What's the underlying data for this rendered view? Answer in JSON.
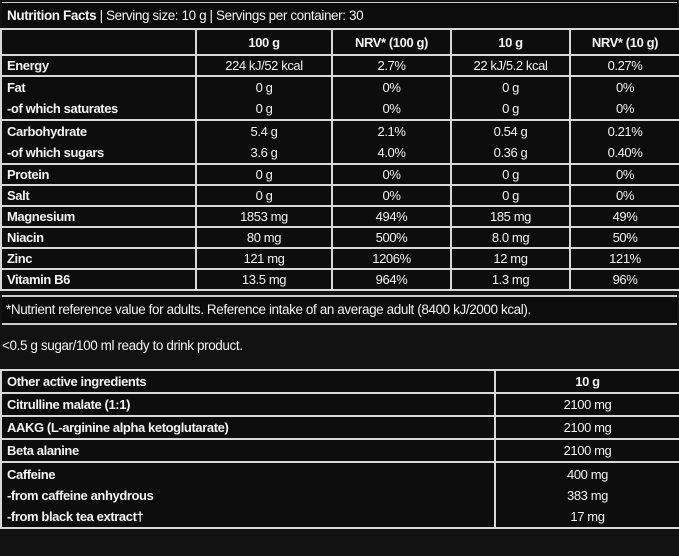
{
  "title": {
    "bold": "Nutrition Facts",
    "rest": " | Serving size: 10 g | Servings per container: 30"
  },
  "nutrition_table": {
    "headers": [
      "",
      "100 g",
      "NRV* (100 g)",
      "10 g",
      "NRV* (10 g)"
    ],
    "rows": [
      {
        "labels": [
          "Energy"
        ],
        "c100": [
          "224 kJ/52 kcal"
        ],
        "nrv100": [
          "2.7%"
        ],
        "c10": [
          "22 kJ/5.2 kcal"
        ],
        "nrv10": [
          "0.27%"
        ]
      },
      {
        "labels": [
          "Fat",
          "-of which saturates"
        ],
        "c100": [
          "0 g",
          "0 g"
        ],
        "nrv100": [
          "0%",
          "0%"
        ],
        "c10": [
          "0 g",
          "0 g"
        ],
        "nrv10": [
          "0%",
          "0%"
        ]
      },
      {
        "labels": [
          "Carbohydrate",
          "-of which sugars"
        ],
        "c100": [
          "5.4 g",
          "3.6 g"
        ],
        "nrv100": [
          "2.1%",
          "4.0%"
        ],
        "c10": [
          "0.54 g",
          "0.36 g"
        ],
        "nrv10": [
          "0.21%",
          "0.40%"
        ]
      },
      {
        "labels": [
          "Protein"
        ],
        "c100": [
          "0 g"
        ],
        "nrv100": [
          "0%"
        ],
        "c10": [
          "0 g"
        ],
        "nrv10": [
          "0%"
        ]
      },
      {
        "labels": [
          "Salt"
        ],
        "c100": [
          "0 g"
        ],
        "nrv100": [
          "0%"
        ],
        "c10": [
          "0 g"
        ],
        "nrv10": [
          "0%"
        ]
      },
      {
        "labels": [
          "Magnesium"
        ],
        "c100": [
          "1853 mg"
        ],
        "nrv100": [
          "494%"
        ],
        "c10": [
          "185 mg"
        ],
        "nrv10": [
          "49%"
        ]
      },
      {
        "labels": [
          "Niacin"
        ],
        "c100": [
          "80 mg"
        ],
        "nrv100": [
          "500%"
        ],
        "c10": [
          "8.0 mg"
        ],
        "nrv10": [
          "50%"
        ]
      },
      {
        "labels": [
          "Zinc"
        ],
        "c100": [
          "121 mg"
        ],
        "nrv100": [
          "1206%"
        ],
        "c10": [
          "12 mg"
        ],
        "nrv10": [
          "121%"
        ]
      },
      {
        "labels": [
          "Vitamin B6"
        ],
        "c100": [
          "13.5 mg"
        ],
        "nrv100": [
          "964%"
        ],
        "c10": [
          "1.3 mg"
        ],
        "nrv10": [
          "96%"
        ]
      }
    ]
  },
  "footnote": "*Nutrient reference value for adults. Reference intake of an average adult (8400 kJ/2000 kcal).",
  "sugar_note": "<0.5 g sugar/100 ml ready to drink product.",
  "active_table": {
    "headers": [
      "Other active ingredients",
      "10 g"
    ],
    "rows": [
      {
        "labels": [
          "Citrulline malate (1:1)"
        ],
        "values": [
          "2100 mg"
        ]
      },
      {
        "labels": [
          "AAKG (L-arginine alpha ketoglutarate)"
        ],
        "values": [
          "2100 mg"
        ]
      },
      {
        "labels": [
          "Beta alanine"
        ],
        "values": [
          "2100 mg"
        ]
      },
      {
        "labels": [
          "Caffeine",
          "-from caffeine anhydrous",
          "-from black tea extract†"
        ],
        "values": [
          "400 mg",
          "383 mg",
          "17 mg"
        ]
      }
    ]
  }
}
